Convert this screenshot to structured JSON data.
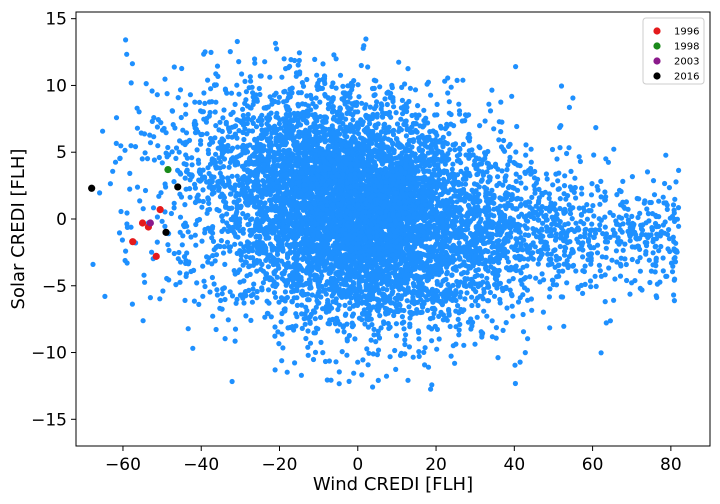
{
  "chart_data": {
    "type": "scatter",
    "xlabel": "Wind CREDI [FLH]",
    "ylabel": "Solar CREDI [FLH]",
    "xlim": [
      -72,
      90
    ],
    "ylim": [
      -17,
      15.5
    ],
    "xticks": [
      -60,
      -40,
      -20,
      0,
      20,
      40,
      60,
      80
    ],
    "yticks": [
      -15,
      -10,
      -5,
      0,
      5,
      10,
      15
    ],
    "xtick_labels": [
      "−60",
      "−40",
      "−20",
      "0",
      "20",
      "40",
      "60",
      "80"
    ],
    "ytick_labels": [
      "−15",
      "−10",
      "−5",
      "0",
      "5",
      "10",
      "15"
    ],
    "grid": false,
    "legend_position": "top-right",
    "background_cloud": {
      "color": "#1e90ff",
      "description_points": "dense cloud of daily values",
      "core_centers": [
        [
          -10,
          3
        ],
        [
          0,
          0.5
        ],
        [
          10,
          -1.5
        ]
      ],
      "x_range": [
        -68,
        86
      ],
      "y_range": [
        -15.5,
        13.7
      ]
    },
    "series": [
      {
        "name": "1996",
        "color": "#e41a1c",
        "x": [
          -57.5,
          -53.5,
          -50.5,
          -51.5,
          -55.0
        ],
        "y": [
          -1.7,
          -0.6,
          0.7,
          -2.8,
          -0.3
        ]
      },
      {
        "name": "1998",
        "color": "#1a8a1a",
        "x": [
          -48.5
        ],
        "y": [
          3.7
        ]
      },
      {
        "name": "2003",
        "color": "#8b1a8b",
        "x": [
          -53.0
        ],
        "y": [
          -0.3
        ]
      },
      {
        "name": "2016",
        "color": "#000000",
        "x": [
          -68.0,
          -46.0,
          -49.0
        ],
        "y": [
          2.3,
          2.4,
          -1.0
        ]
      }
    ]
  }
}
